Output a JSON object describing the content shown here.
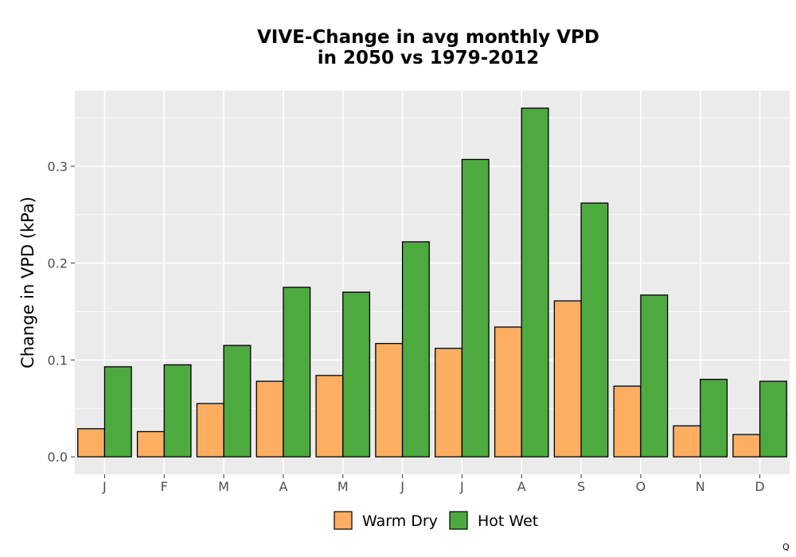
{
  "corner_mark": "Q",
  "chart_data": {
    "type": "bar",
    "title_lines": [
      "VIVE-Change in avg monthly VPD",
      "in 2050 vs 1979-2012"
    ],
    "xlabel": "",
    "ylabel": "Change in VPD (kPa)",
    "categories": [
      "J",
      "F",
      "M",
      "A",
      "M",
      "J",
      "J",
      "A",
      "S",
      "O",
      "N",
      "D"
    ],
    "series": [
      {
        "name": "Warm Dry",
        "color": "#fdae61",
        "values": [
          0.029,
          0.026,
          0.055,
          0.078,
          0.084,
          0.117,
          0.112,
          0.134,
          0.161,
          0.073,
          0.032,
          0.023
        ]
      },
      {
        "name": "Hot Wet",
        "color": "#4daa3f",
        "values": [
          0.093,
          0.095,
          0.115,
          0.175,
          0.17,
          0.222,
          0.307,
          0.36,
          0.262,
          0.167,
          0.08,
          0.078
        ]
      }
    ],
    "ylim": [
      -0.018,
      0.378
    ],
    "yticks": [
      0.0,
      0.1,
      0.2,
      0.3
    ],
    "ytick_labels": [
      "0.0",
      "0.1",
      "0.2",
      "0.3"
    ],
    "grid": true,
    "legend_position": "bottom",
    "panel_color": "#ebebeb"
  }
}
